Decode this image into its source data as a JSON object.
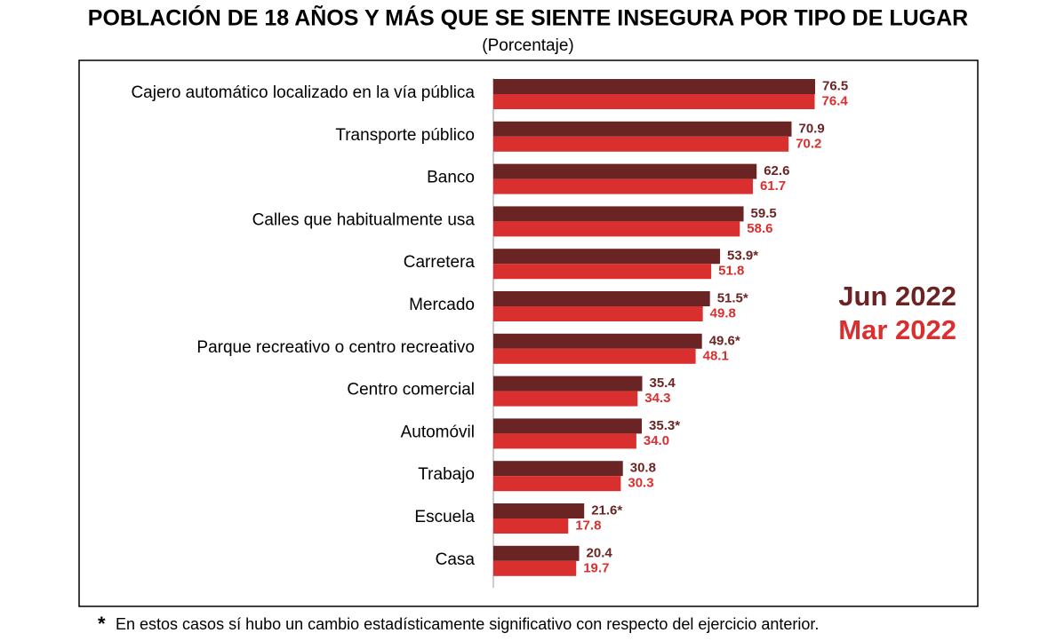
{
  "chart_data": {
    "type": "hbar",
    "title": "POBLACIÓN DE 18 AÑOS Y MÁS QUE SE SIENTE INSEGURA POR TIPO DE LUGAR",
    "subtitle": "(Porcentaje)",
    "categories": [
      "Cajero automático localizado en la vía pública",
      "Transporte público",
      "Banco",
      "Calles que habitualmente usa",
      "Carretera",
      "Mercado",
      "Parque recreativo o centro recreativo",
      "Centro comercial",
      "Automóvil",
      "Trabajo",
      "Escuela",
      "Casa"
    ],
    "series": [
      {
        "name": "Jun 2022",
        "color": "#6b2424",
        "values": [
          76.5,
          70.9,
          62.6,
          59.5,
          53.9,
          51.5,
          49.6,
          35.4,
          35.3,
          30.8,
          21.6,
          20.4
        ],
        "value_labels": [
          "76.5",
          "70.9",
          "62.6",
          "59.5",
          "53.9*",
          "51.5*",
          "49.6*",
          "35.4",
          "35.3*",
          "30.8",
          "21.6*",
          "20.4"
        ]
      },
      {
        "name": "Mar 2022",
        "color": "#da2f2f",
        "values": [
          76.4,
          70.2,
          61.7,
          58.6,
          51.8,
          49.8,
          48.1,
          34.3,
          34.0,
          30.3,
          17.8,
          19.7
        ],
        "value_labels": [
          "76.4",
          "70.2",
          "61.7",
          "58.6",
          "51.8",
          "49.8",
          "48.1",
          "34.3",
          "34.0",
          "30.3",
          "17.8",
          "19.7"
        ]
      }
    ],
    "footnote": {
      "marker": "*",
      "text": "En estos casos sí hubo un cambio estadísticamente significativo con respecto del ejercicio anterior."
    }
  }
}
